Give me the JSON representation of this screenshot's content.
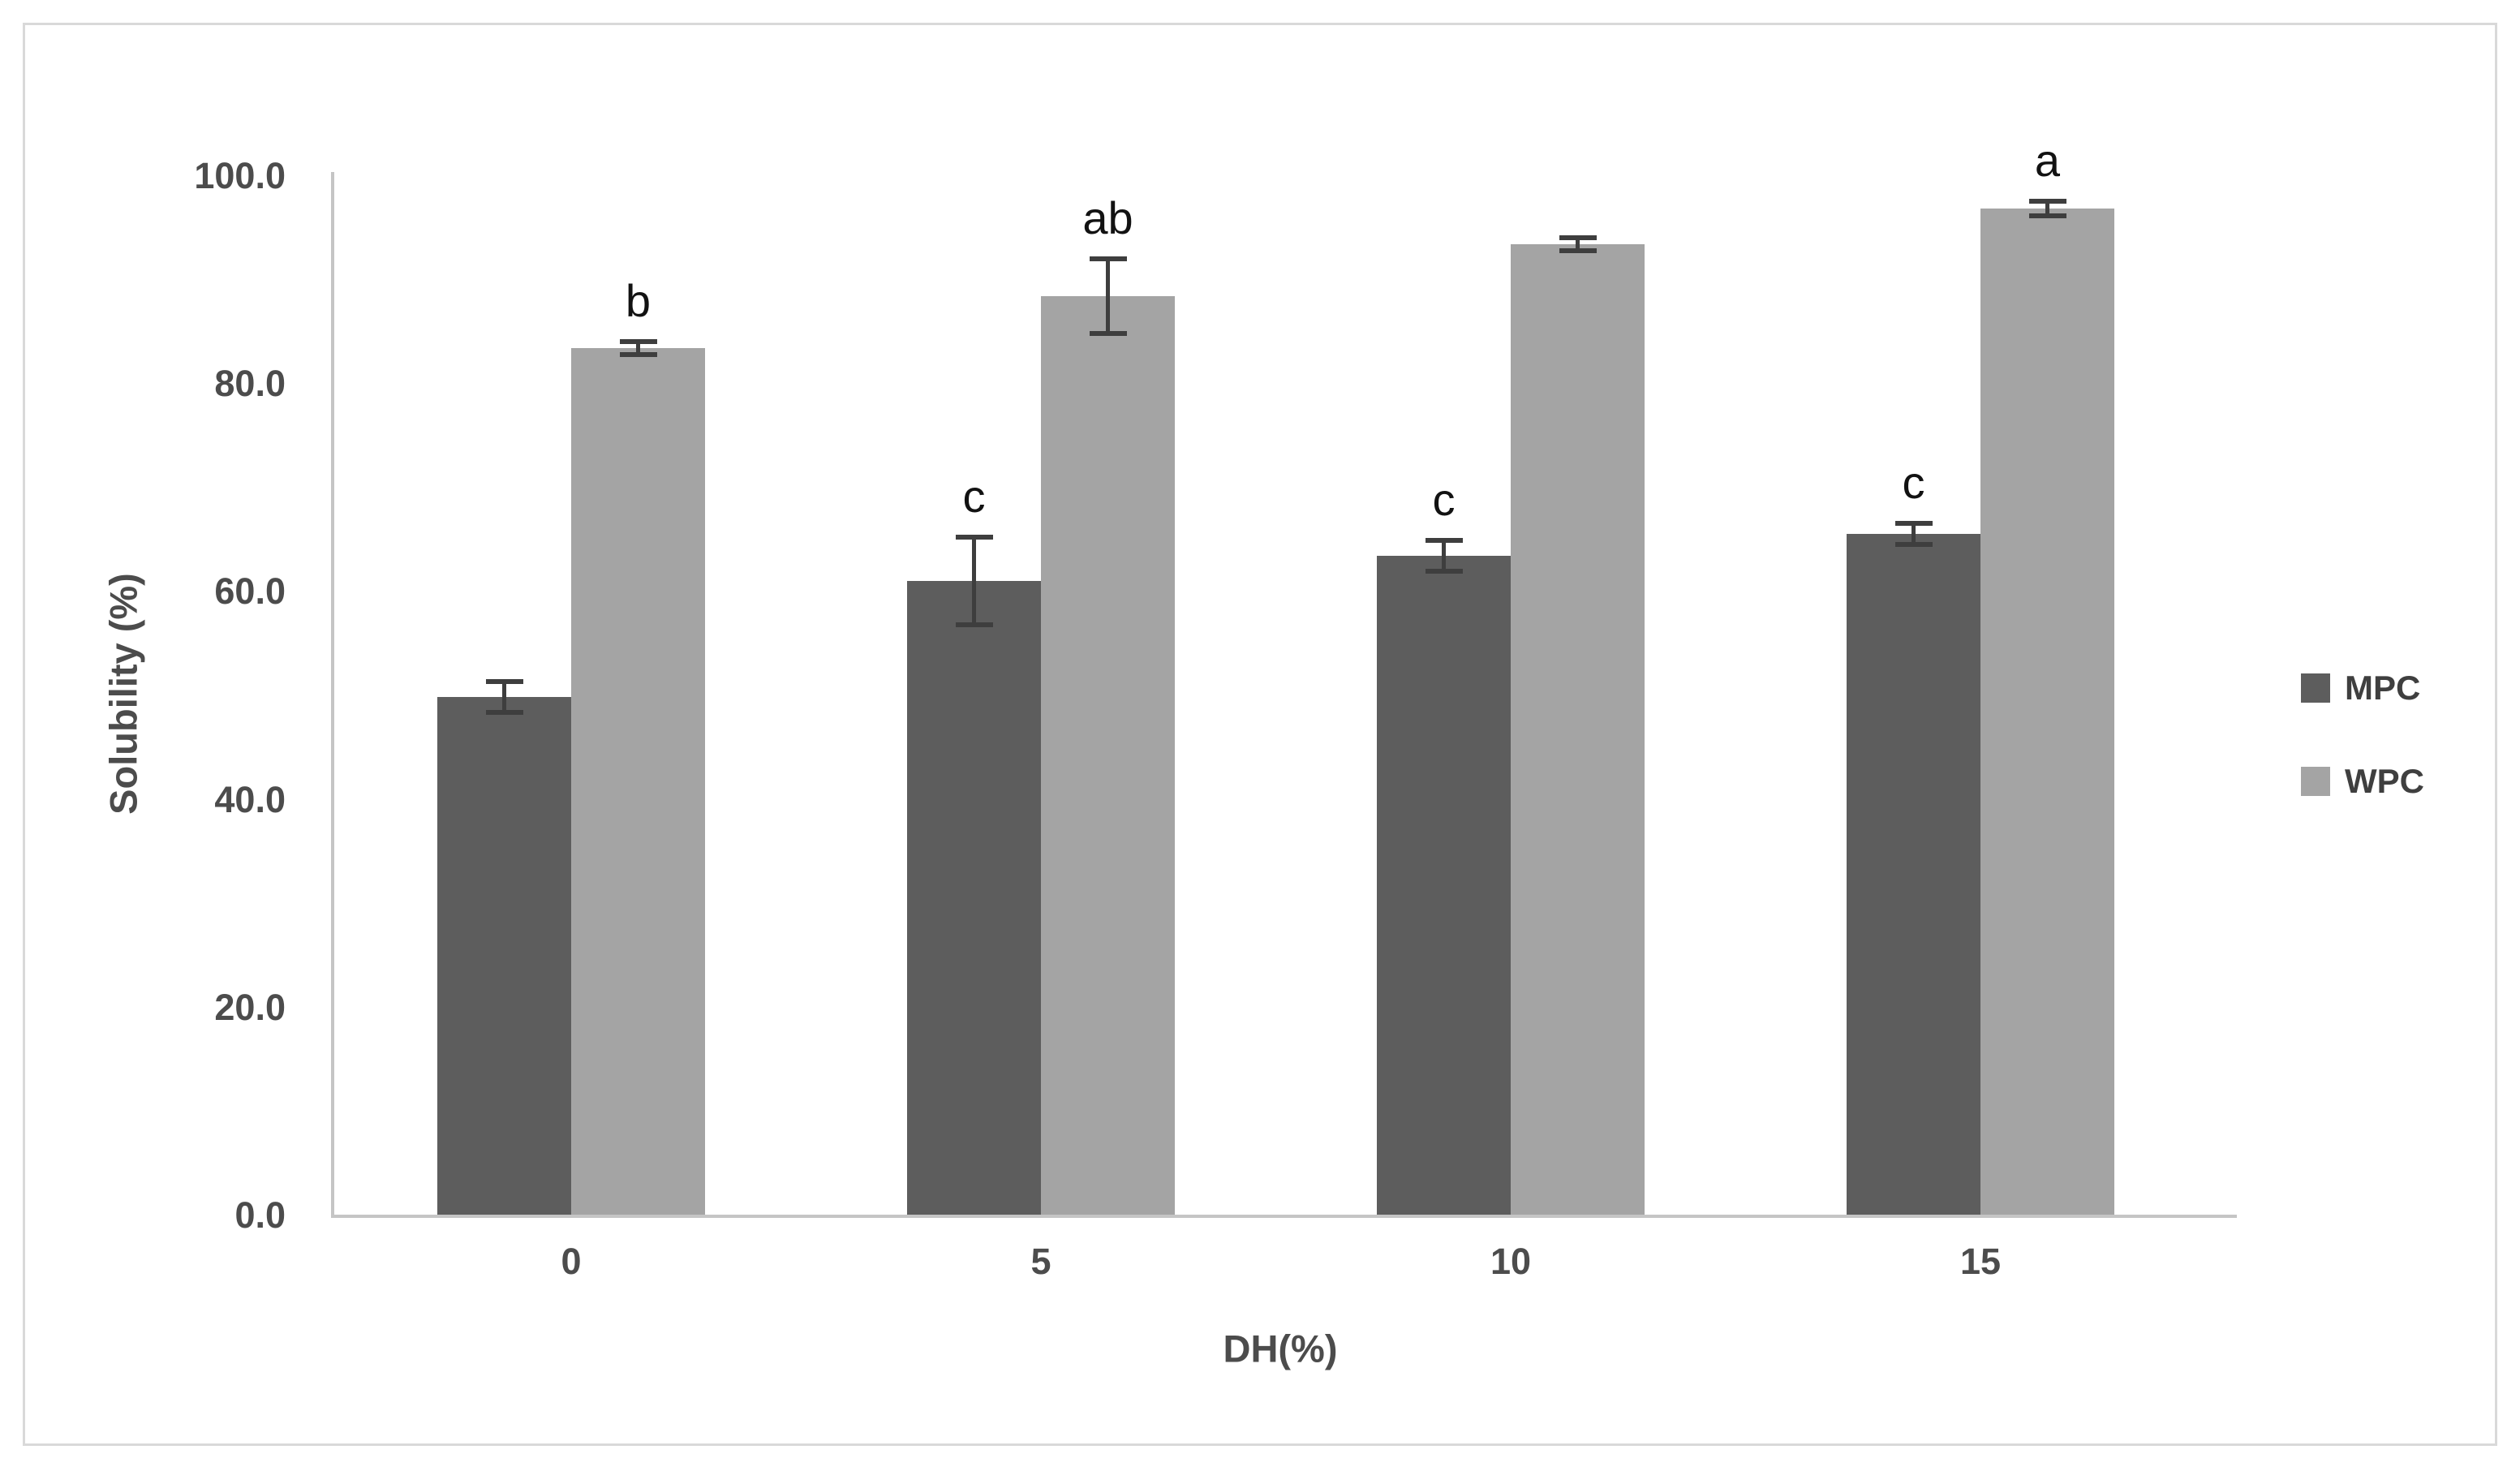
{
  "chart_data": {
    "type": "bar",
    "title": "",
    "xlabel": "DH(%)",
    "ylabel": "Solubility (%)",
    "categories": [
      "0",
      "5",
      "10",
      "15"
    ],
    "series": [
      {
        "name": "MPC",
        "color": "#5d5d5d",
        "values": [
          49.8,
          61.0,
          63.4,
          65.5
        ],
        "errors": [
          1.5,
          4.2,
          1.5,
          1.0
        ],
        "letters": [
          "",
          "c",
          "c",
          "c"
        ]
      },
      {
        "name": "WPC",
        "color": "#a4a4a4",
        "values": [
          83.4,
          88.4,
          93.4,
          96.8
        ],
        "errors": [
          0.6,
          3.6,
          0.6,
          0.7
        ],
        "letters": [
          "b",
          "ab",
          "",
          "a"
        ]
      }
    ],
    "ylim": [
      0,
      100
    ],
    "yticks": [
      0,
      20,
      40,
      60,
      80,
      100
    ],
    "ytick_labels": [
      "0.0",
      "20.0",
      "40.0",
      "60.0",
      "80.0",
      "100.0"
    ],
    "grid": false,
    "legend_position": "right",
    "error_bar_color": "#3e3e3e",
    "axis_color": "#c5c5c5",
    "frame_border_color": "#d9d9d9"
  }
}
